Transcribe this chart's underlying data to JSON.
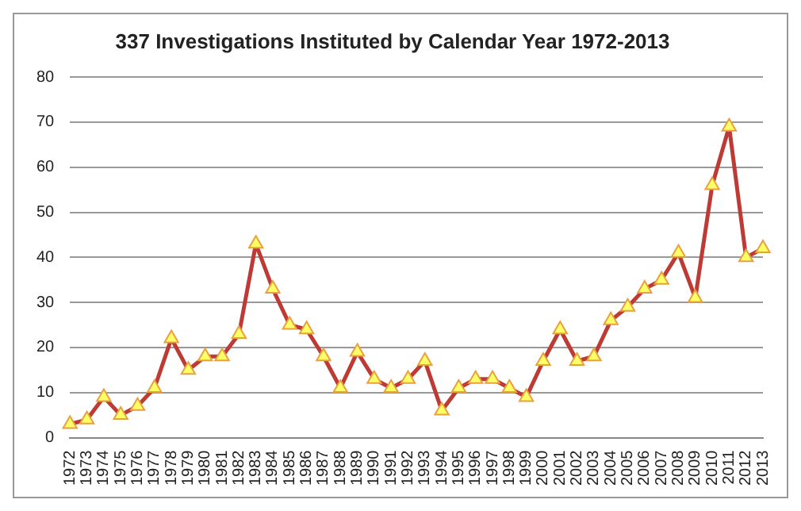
{
  "chart_data": {
    "type": "line",
    "title": "337 Investigations Instituted by Calendar Year 1972-2013",
    "categories": [
      "1972",
      "1973",
      "1974",
      "1975",
      "1976",
      "1977",
      "1978",
      "1979",
      "1980",
      "1981",
      "1982",
      "1983",
      "1984",
      "1985",
      "1986",
      "1987",
      "1988",
      "1989",
      "1990",
      "1991",
      "1992",
      "1993",
      "1994",
      "1995",
      "1996",
      "1997",
      "1998",
      "1999",
      "2000",
      "2001",
      "2002",
      "2003",
      "2004",
      "2005",
      "2006",
      "2007",
      "2008",
      "2009",
      "2010",
      "2011",
      "2012",
      "2013"
    ],
    "series": [
      {
        "color": "#be3a34",
        "values": [
          3,
          4,
          9,
          5,
          7,
          11,
          22,
          15,
          18,
          18,
          23,
          43,
          33,
          25,
          24,
          18,
          11,
          19,
          13,
          11,
          13,
          17,
          6,
          11,
          13,
          13,
          11,
          9,
          17,
          24,
          17,
          18,
          26,
          29,
          33,
          35,
          41,
          31,
          56,
          69,
          40,
          42
        ]
      }
    ],
    "ylim": [
      0,
      80
    ],
    "yticks": [
      0,
      10,
      20,
      30,
      40,
      50,
      60,
      70,
      80
    ],
    "grid": "y",
    "legend": false,
    "marker": "triangle",
    "line_style": "solid"
  }
}
